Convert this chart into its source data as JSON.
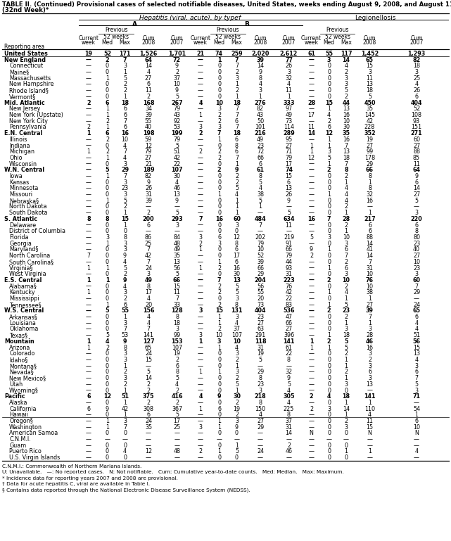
{
  "title_line1": "TABLE II. (Continued) Provisional cases of selected notifiable diseases, United States, weeks ending August 9, 2008, and August 11, 2007",
  "title_line2": "(32nd Week)*",
  "hepatitis_label": "Hepatitis (viral, acute), by type†",
  "A_label": "A",
  "B_label": "B",
  "Leg_label": "Legionellosis",
  "prev52_label": "Previous\n52 weeks",
  "col_headers_row1": [
    "",
    "Current",
    "Previous",
    "",
    "Cum",
    "Cum",
    "Current",
    "Previous",
    "",
    "Cum",
    "Cum",
    "Current",
    "Previous",
    "",
    "Cum",
    "Cum"
  ],
  "col_headers_row2": [
    "",
    "week",
    "52 weeks",
    "",
    "2008",
    "2007",
    "week",
    "52 weeks",
    "",
    "2008",
    "2007",
    "week",
    "52 weeks",
    "",
    "2008",
    "2007"
  ],
  "col_headers_row3": [
    "Reporting area",
    "",
    "Med",
    "Max",
    "",
    "",
    "",
    "Med",
    "Max",
    "",
    "",
    "",
    "Med",
    "Max",
    "",
    ""
  ],
  "rows": [
    [
      "United States",
      "19",
      "52",
      "171",
      "1,526",
      "1,701",
      "21",
      "74",
      "259",
      "2,020",
      "2,612",
      "61",
      "55",
      "117",
      "1,452",
      "1,293"
    ],
    [
      "New England",
      "—",
      "2",
      "7",
      "64",
      "72",
      "—",
      "1",
      "7",
      "39",
      "77",
      "—",
      "3",
      "14",
      "65",
      "82"
    ],
    [
      "Connecticut",
      "—",
      "0",
      "3",
      "14",
      "9",
      "—",
      "0",
      "7",
      "14",
      "26",
      "—",
      "0",
      "4",
      "15",
      "18"
    ],
    [
      "Maine§",
      "—",
      "0",
      "1",
      "4",
      "2",
      "—",
      "0",
      "2",
      "9",
      "3",
      "—",
      "0",
      "2",
      "3",
      "3"
    ],
    [
      "Massachusetts",
      "—",
      "1",
      "5",
      "27",
      "37",
      "—",
      "0",
      "3",
      "8",
      "32",
      "—",
      "0",
      "3",
      "11",
      "25"
    ],
    [
      "New Hampshire",
      "—",
      "0",
      "2",
      "6",
      "10",
      "—",
      "0",
      "1",
      "4",
      "4",
      "—",
      "0",
      "3",
      "13",
      "4"
    ],
    [
      "Rhode Island§",
      "—",
      "0",
      "2",
      "11",
      "9",
      "—",
      "0",
      "2",
      "3",
      "11",
      "—",
      "0",
      "5",
      "18",
      "26"
    ],
    [
      "Vermont§",
      "—",
      "0",
      "1",
      "2",
      "5",
      "—",
      "0",
      "1",
      "1",
      "1",
      "—",
      "0",
      "2",
      "5",
      "6"
    ],
    [
      "Mid. Atlantic",
      "2",
      "6",
      "18",
      "168",
      "267",
      "4",
      "10",
      "18",
      "276",
      "333",
      "28",
      "15",
      "44",
      "450",
      "404"
    ],
    [
      "New Jersey",
      "—",
      "1",
      "6",
      "34",
      "79",
      "—",
      "3",
      "7",
      "82",
      "97",
      "—",
      "1",
      "13",
      "35",
      "52"
    ],
    [
      "New York (Upstate)",
      "—",
      "1",
      "6",
      "39",
      "43",
      "1",
      "2",
      "7",
      "43",
      "49",
      "17",
      "4",
      "16",
      "145",
      "108"
    ],
    [
      "New York City",
      "—",
      "2",
      "7",
      "55",
      "92",
      "—",
      "2",
      "6",
      "50",
      "73",
      "—",
      "2",
      "10",
      "42",
      "93"
    ],
    [
      "Pennsylvania",
      "2",
      "1",
      "6",
      "40",
      "53",
      "3",
      "3",
      "7",
      "101",
      "114",
      "11",
      "6",
      "30",
      "228",
      "151"
    ],
    [
      "E.N. Central",
      "1",
      "6",
      "16",
      "198",
      "199",
      "2",
      "7",
      "18",
      "216",
      "289",
      "14",
      "12",
      "35",
      "352",
      "271"
    ],
    [
      "Illinois",
      "—",
      "2",
      "10",
      "59",
      "79",
      "—",
      "1",
      "6",
      "49",
      "95",
      "—",
      "1",
      "16",
      "19",
      "60"
    ],
    [
      "Indiana",
      "—",
      "0",
      "4",
      "12",
      "5",
      "—",
      "0",
      "8",
      "23",
      "27",
      "1",
      "1",
      "7",
      "27",
      "27"
    ],
    [
      "Michigan",
      "1",
      "2",
      "7",
      "79",
      "51",
      "2",
      "2",
      "6",
      "72",
      "71",
      "1",
      "3",
      "13",
      "99",
      "88"
    ],
    [
      "Ohio",
      "—",
      "1",
      "4",
      "27",
      "42",
      "—",
      "2",
      "7",
      "66",
      "79",
      "12",
      "5",
      "18",
      "178",
      "85"
    ],
    [
      "Wisconsin",
      "—",
      "0",
      "3",
      "21",
      "22",
      "—",
      "0",
      "1",
      "6",
      "17",
      "—",
      "1",
      "7",
      "29",
      "11"
    ],
    [
      "W.N. Central",
      "—",
      "5",
      "29",
      "189",
      "107",
      "—",
      "2",
      "9",
      "61",
      "74",
      "—",
      "2",
      "8",
      "66",
      "64"
    ],
    [
      "Iowa",
      "—",
      "1",
      "7",
      "82",
      "30",
      "—",
      "0",
      "2",
      "8",
      "15",
      "—",
      "0",
      "2",
      "8",
      "9"
    ],
    [
      "Kansas",
      "—",
      "0",
      "3",
      "9",
      "4",
      "—",
      "0",
      "2",
      "5",
      "6",
      "—",
      "0",
      "1",
      "1",
      "6"
    ],
    [
      "Minnesota",
      "—",
      "0",
      "23",
      "26",
      "46",
      "—",
      "0",
      "5",
      "4",
      "13",
      "—",
      "0",
      "4",
      "8",
      "14"
    ],
    [
      "Missouri",
      "—",
      "0",
      "3",
      "31",
      "13",
      "—",
      "1",
      "4",
      "38",
      "26",
      "—",
      "1",
      "4",
      "32",
      "27"
    ],
    [
      "Nebraska§",
      "—",
      "1",
      "5",
      "39",
      "9",
      "—",
      "0",
      "1",
      "5",
      "9",
      "—",
      "0",
      "4",
      "16",
      "5"
    ],
    [
      "North Dakota",
      "—",
      "0",
      "2",
      "—",
      "—",
      "—",
      "0",
      "1",
      "1",
      "—",
      "—",
      "0",
      "2",
      "—",
      "—"
    ],
    [
      "South Dakota",
      "—",
      "0",
      "1",
      "2",
      "5",
      "—",
      "0",
      "1",
      "—",
      "5",
      "—",
      "0",
      "1",
      "1",
      "3"
    ],
    [
      "S. Atlantic",
      "8",
      "8",
      "15",
      "200",
      "293",
      "7",
      "16",
      "60",
      "484",
      "634",
      "16",
      "7",
      "28",
      "217",
      "220"
    ],
    [
      "Delaware",
      "—",
      "0",
      "1",
      "6",
      "3",
      "—",
      "0",
      "3",
      "7",
      "11",
      "—",
      "0",
      "2",
      "6",
      "6"
    ],
    [
      "District of Columbia",
      "—",
      "0",
      "0",
      "—",
      "—",
      "—",
      "0",
      "0",
      "—",
      "—",
      "—",
      "0",
      "1",
      "6",
      "8"
    ],
    [
      "Florida",
      "—",
      "3",
      "8",
      "86",
      "84",
      "3",
      "6",
      "12",
      "202",
      "219",
      "5",
      "3",
      "10",
      "88",
      "80"
    ],
    [
      "Georgia",
      "—",
      "1",
      "3",
      "25",
      "48",
      "2",
      "3",
      "8",
      "79",
      "91",
      "—",
      "0",
      "3",
      "14",
      "23"
    ],
    [
      "Maryland§",
      "—",
      "0",
      "3",
      "7",
      "49",
      "1",
      "0",
      "6",
      "10",
      "66",
      "9",
      "1",
      "6",
      "41",
      "40"
    ],
    [
      "North Carolina",
      "7",
      "0",
      "9",
      "42",
      "35",
      "—",
      "0",
      "17",
      "52",
      "79",
      "2",
      "0",
      "7",
      "14",
      "27"
    ],
    [
      "South Carolina§",
      "—",
      "0",
      "4",
      "7",
      "13",
      "—",
      "1",
      "6",
      "39",
      "44",
      "—",
      "0",
      "2",
      "7",
      "10"
    ],
    [
      "Virginia§",
      "1",
      "1",
      "5",
      "24",
      "56",
      "1",
      "2",
      "16",
      "66",
      "93",
      "—",
      "1",
      "6",
      "31",
      "23"
    ],
    [
      "West Virginia",
      "—",
      "0",
      "2",
      "3",
      "5",
      "—",
      "0",
      "30",
      "29",
      "31",
      "—",
      "0",
      "3",
      "10",
      "3"
    ],
    [
      "E.S. Central",
      "1",
      "1",
      "9",
      "49",
      "66",
      "—",
      "7",
      "13",
      "204",
      "223",
      "—",
      "2",
      "10",
      "76",
      "60"
    ],
    [
      "Alabama§",
      "—",
      "0",
      "4",
      "8",
      "15",
      "—",
      "2",
      "5",
      "56",
      "76",
      "—",
      "0",
      "2",
      "10",
      "7"
    ],
    [
      "Kentucky",
      "1",
      "0",
      "3",
      "17",
      "11",
      "—",
      "2",
      "5",
      "55",
      "42",
      "—",
      "1",
      "4",
      "38",
      "29"
    ],
    [
      "Mississippi",
      "—",
      "0",
      "2",
      "4",
      "7",
      "—",
      "0",
      "3",
      "20",
      "22",
      "—",
      "0",
      "1",
      "1",
      "—"
    ],
    [
      "Tennessee§",
      "—",
      "1",
      "6",
      "20",
      "33",
      "—",
      "2",
      "8",
      "73",
      "83",
      "—",
      "1",
      "5",
      "27",
      "24"
    ],
    [
      "W.S. Central",
      "—",
      "5",
      "55",
      "156",
      "128",
      "3",
      "15",
      "131",
      "404",
      "536",
      "—",
      "2",
      "23",
      "39",
      "65"
    ],
    [
      "Arkansas§",
      "—",
      "0",
      "1",
      "4",
      "8",
      "—",
      "1",
      "3",
      "23",
      "47",
      "—",
      "0",
      "2",
      "7",
      "6"
    ],
    [
      "Louisiana",
      "—",
      "0",
      "3",
      "4",
      "18",
      "—",
      "1",
      "4",
      "27",
      "66",
      "—",
      "0",
      "1",
      "1",
      "4"
    ],
    [
      "Oklahoma",
      "—",
      "0",
      "7",
      "7",
      "3",
      "—",
      "2",
      "37",
      "63",
      "27",
      "—",
      "0",
      "3",
      "3",
      "4"
    ],
    [
      "Texas§",
      "—",
      "5",
      "53",
      "141",
      "99",
      "3",
      "10",
      "107",
      "291",
      "396",
      "—",
      "1",
      "18",
      "28",
      "51"
    ],
    [
      "Mountain",
      "1",
      "4",
      "9",
      "127",
      "153",
      "1",
      "3",
      "10",
      "118",
      "141",
      "1",
      "2",
      "5",
      "46",
      "56"
    ],
    [
      "Arizona",
      "1",
      "2",
      "8",
      "65",
      "107",
      "—",
      "1",
      "4",
      "31",
      "61",
      "1",
      "1",
      "5",
      "16",
      "15"
    ],
    [
      "Colorado",
      "—",
      "0",
      "3",
      "24",
      "19",
      "—",
      "0",
      "3",
      "19",
      "22",
      "—",
      "0",
      "2",
      "3",
      "13"
    ],
    [
      "Idaho§",
      "—",
      "0",
      "3",
      "15",
      "2",
      "—",
      "0",
      "2",
      "5",
      "8",
      "—",
      "0",
      "1",
      "2",
      "4"
    ],
    [
      "Montana§",
      "—",
      "0",
      "1",
      "—",
      "6",
      "—",
      "0",
      "1",
      "—",
      "—",
      "—",
      "0",
      "1",
      "3",
      "3"
    ],
    [
      "Nevada§",
      "—",
      "0",
      "2",
      "5",
      "8",
      "1",
      "1",
      "3",
      "29",
      "32",
      "—",
      "0",
      "2",
      "6",
      "6"
    ],
    [
      "New Mexico§",
      "—",
      "0",
      "3",
      "14",
      "5",
      "—",
      "0",
      "2",
      "8",
      "9",
      "—",
      "0",
      "1",
      "3",
      "7"
    ],
    [
      "Utah",
      "—",
      "0",
      "2",
      "2",
      "4",
      "—",
      "0",
      "5",
      "23",
      "5",
      "—",
      "0",
      "3",
      "13",
      "5"
    ],
    [
      "Wyoming§",
      "—",
      "0",
      "1",
      "2",
      "2",
      "—",
      "0",
      "1",
      "3",
      "4",
      "—",
      "0",
      "0",
      "—",
      "3"
    ],
    [
      "Pacific",
      "6",
      "12",
      "51",
      "375",
      "416",
      "4",
      "9",
      "30",
      "218",
      "305",
      "2",
      "4",
      "18",
      "141",
      "71"
    ],
    [
      "Alaska",
      "—",
      "0",
      "1",
      "2",
      "2",
      "—",
      "0",
      "2",
      "8",
      "4",
      "—",
      "0",
      "1",
      "1",
      "—"
    ],
    [
      "California",
      "6",
      "9",
      "42",
      "308",
      "367",
      "1",
      "6",
      "19",
      "150",
      "225",
      "2",
      "3",
      "14",
      "110",
      "54"
    ],
    [
      "Hawaii",
      "—",
      "0",
      "1",
      "6",
      "5",
      "—",
      "0",
      "2",
      "4",
      "8",
      "—",
      "0",
      "1",
      "4",
      "1"
    ],
    [
      "Oregon§",
      "—",
      "1",
      "3",
      "24",
      "17",
      "—",
      "1",
      "3",
      "27",
      "37",
      "—",
      "0",
      "2",
      "11",
      "6"
    ],
    [
      "Washington",
      "—",
      "1",
      "7",
      "35",
      "25",
      "3",
      "1",
      "9",
      "29",
      "31",
      "—",
      "0",
      "3",
      "15",
      "10"
    ],
    [
      "American Samoa",
      "—",
      "0",
      "0",
      "—",
      "—",
      "—",
      "0",
      "0",
      "—",
      "14",
      "N",
      "0",
      "0",
      "N",
      "N"
    ],
    [
      "C.N.M.I.",
      "—",
      "—",
      "—",
      "—",
      "—",
      "—",
      "—",
      "—",
      "—",
      "—",
      "—",
      "—",
      "—",
      "—",
      "—"
    ],
    [
      "Guam",
      "—",
      "0",
      "0",
      "—",
      "—",
      "—",
      "0",
      "1",
      "—",
      "2",
      "—",
      "0",
      "0",
      "—",
      "—"
    ],
    [
      "Puerto Rico",
      "—",
      "0",
      "4",
      "12",
      "48",
      "2",
      "1",
      "5",
      "24",
      "46",
      "—",
      "0",
      "1",
      "1",
      "4"
    ],
    [
      "U.S. Virgin Islands",
      "—",
      "0",
      "0",
      "—",
      "—",
      "—",
      "0",
      "0",
      "—",
      "—",
      "—",
      "0",
      "0",
      "—",
      "—"
    ]
  ],
  "bold_rows": [
    0,
    1,
    8,
    13,
    19,
    27,
    37,
    42,
    47,
    56
  ],
  "section_header_rows": [
    1,
    8,
    13,
    19,
    27,
    37,
    42,
    47,
    56
  ],
  "footnotes": [
    "C.N.M.I.: Commonwealth of Northern Mariana Islands.",
    "U: Unavailable.   —: No reported cases.   N: Not notifiable.   Cum: Cumulative year-to-date counts.   Med: Median.   Max: Maximum.",
    "* Incidence data for reporting years 2007 and 2008 are provisional.",
    "† Data for acute hepatitis C, viral are available in Table I.",
    "§ Contains data reported through the National Electronic Disease Surveillance System (NEDSS)."
  ],
  "col_starts": [
    4,
    112,
    140,
    165,
    190,
    232,
    271,
    299,
    324,
    349,
    391,
    430,
    455,
    480,
    504,
    547
  ],
  "col_ends": [
    112,
    140,
    165,
    190,
    232,
    271,
    299,
    324,
    349,
    391,
    430,
    455,
    480,
    504,
    547,
    637
  ]
}
